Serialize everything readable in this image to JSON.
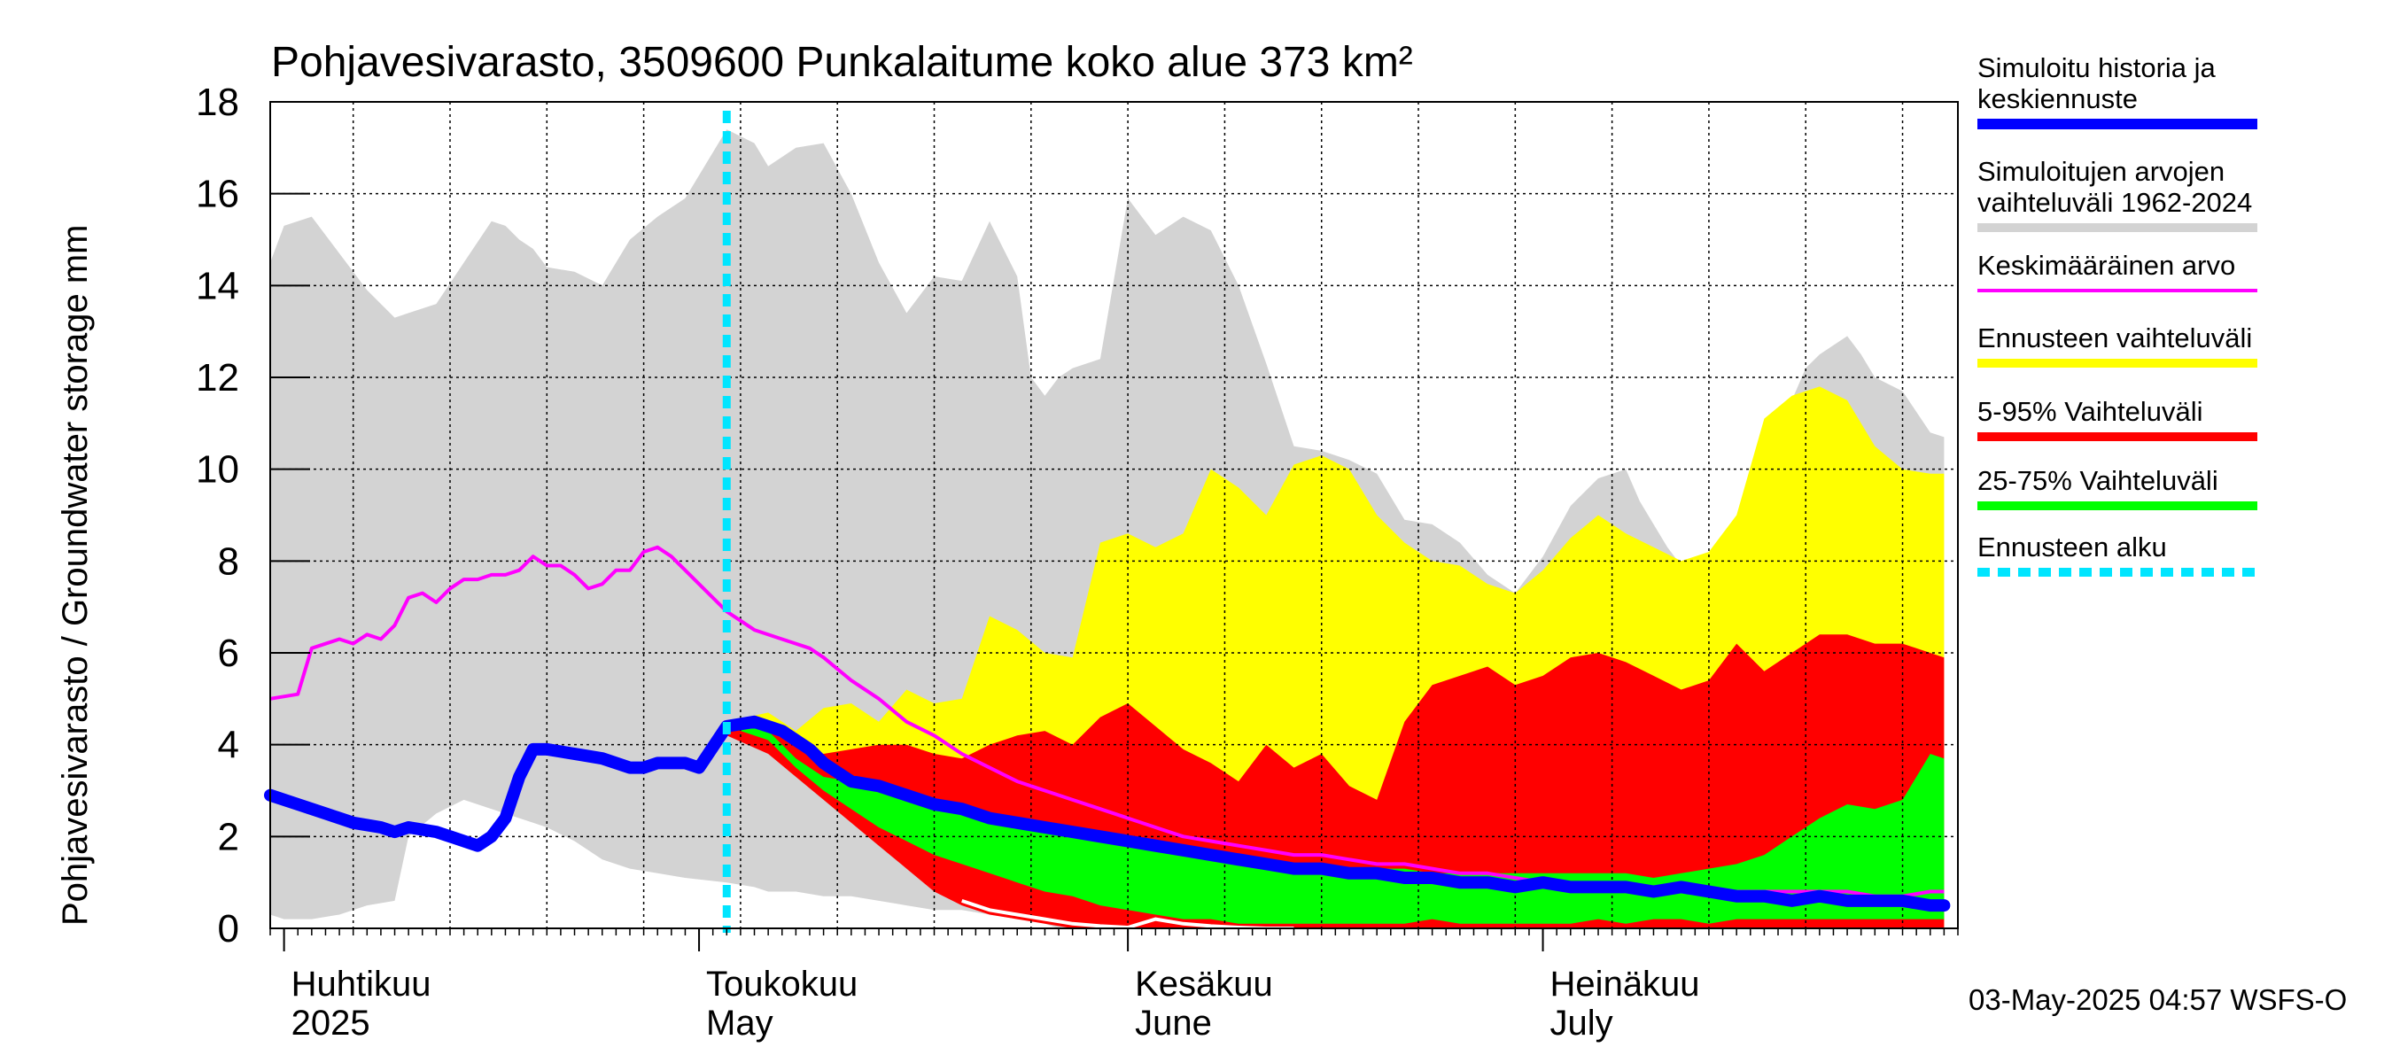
{
  "chart_data": {
    "type": "area",
    "title": "Pohjavesivarasto, 3509600 Punkalaitume koko alue 373 km²",
    "ylabel": "Pohjavesivarasto / Groundwater storage   mm",
    "ylim": [
      0,
      18
    ],
    "y_ticks": [
      "0",
      "2",
      "4",
      "6",
      "8",
      "10",
      "12",
      "14",
      "16",
      "18"
    ],
    "xlim": [
      "2025-03-31",
      "2025-07-31"
    ],
    "x_month_labels": [
      {
        "date": "2025-04-01",
        "fi": "Huhtikuu",
        "en": "2025"
      },
      {
        "date": "2025-05-01",
        "fi": "Toukokuu",
        "en": "May"
      },
      {
        "date": "2025-06-01",
        "fi": "Kesäkuu",
        "en": "June"
      },
      {
        "date": "2025-07-01",
        "fi": "Heinäkuu",
        "en": "July"
      }
    ],
    "grid": true,
    "legend_position": "right",
    "forecast_start": "2025-05-03",
    "timestamp": "03-May-2025 04:57 WSFS-O",
    "legend": [
      {
        "id": "sim",
        "label": [
          "Simuloitu historia ja",
          "keskiennuste"
        ],
        "color": "#0000ff"
      },
      {
        "id": "range",
        "label": [
          "Simuloitujen arvojen",
          "vaihteluväli 1962-2024"
        ],
        "color": "#d3d3d3"
      },
      {
        "id": "mean",
        "label": [
          "Keskimääräinen arvo"
        ],
        "color": "#ff00ff"
      },
      {
        "id": "fc_range",
        "label": [
          "Ennusteen vaihteluväli"
        ],
        "color": "#ffff00"
      },
      {
        "id": "p5_95",
        "label": [
          "5-95% Vaihteluväli"
        ],
        "color": "#ff0000"
      },
      {
        "id": "p25_75",
        "label": [
          "25-75% Vaihteluväli"
        ],
        "color": "#00ff00"
      },
      {
        "id": "fc_start",
        "label": [
          "Ennusteen alku"
        ],
        "color": "#00e5ff"
      }
    ],
    "series": {
      "hist_range": {
        "days": [
          0,
          1,
          3,
          5,
          7,
          9,
          10,
          12,
          14,
          16,
          17,
          18,
          19,
          20,
          22,
          24,
          26,
          28,
          30,
          33,
          35,
          36,
          38,
          40,
          42,
          44,
          46,
          48,
          50,
          52,
          54,
          55,
          56,
          57,
          58,
          60,
          62,
          64,
          66,
          68,
          70,
          72,
          74,
          76,
          78,
          80,
          82,
          84,
          86,
          88,
          90,
          92,
          94,
          96,
          98,
          99,
          100,
          101,
          102,
          104,
          106,
          108,
          110,
          111,
          112,
          113,
          114,
          115,
          116,
          118,
          120,
          121
        ],
        "upper": [
          14.5,
          15.3,
          15.5,
          14.7,
          13.9,
          13.3,
          13.4,
          13.6,
          14.5,
          15.4,
          15.3,
          15.0,
          14.8,
          14.4,
          14.3,
          14.0,
          15.0,
          15.5,
          15.9,
          17.4,
          17.1,
          16.6,
          17.0,
          17.1,
          16.0,
          14.5,
          13.4,
          14.2,
          14.1,
          15.4,
          14.2,
          12.0,
          11.6,
          12.0,
          12.2,
          12.4,
          15.9,
          15.1,
          15.5,
          15.2,
          14.0,
          12.3,
          10.5,
          10.4,
          10.2,
          9.9,
          8.9,
          8.8,
          8.4,
          7.7,
          7.3,
          8.1,
          9.2,
          9.8,
          10.0,
          9.3,
          8.8,
          8.3,
          7.9,
          7.9,
          7.8,
          9.0,
          11.5,
          12.2,
          12.5,
          12.7,
          12.9,
          12.5,
          12.0,
          11.7,
          10.8,
          10.7
        ],
        "lower": [
          0.3,
          0.2,
          0.2,
          0.3,
          0.5,
          0.6,
          2.0,
          2.5,
          2.8,
          2.6,
          2.5,
          2.4,
          2.3,
          2.2,
          1.9,
          1.5,
          1.3,
          1.2,
          1.1,
          1.0,
          0.9,
          0.8,
          0.8,
          0.7,
          0.7,
          0.6,
          0.5,
          0.4,
          0.4,
          0.3,
          0.2,
          0.2,
          0.1,
          0.0,
          0.0,
          0.0,
          0.0,
          0.0,
          0.0,
          0.0,
          0.0,
          0.0,
          0.0,
          0.0,
          0.0,
          0.0,
          0.0,
          0.0,
          0.0,
          0.0,
          0.0,
          0.0,
          0.0,
          0.0,
          0.0,
          0.0,
          0.0,
          0.0,
          0.0,
          0.0,
          0.0,
          0.0,
          0.0,
          0.0,
          0.0,
          0.0,
          0.0,
          0.0,
          0.0,
          0.0,
          0.0,
          0.0
        ]
      },
      "forecast_range": {
        "days": [
          33,
          36,
          38,
          40,
          42,
          44,
          46,
          48,
          50,
          52,
          54,
          56,
          58,
          60,
          62,
          64,
          66,
          68,
          70,
          72,
          74,
          76,
          78,
          80,
          82,
          84,
          86,
          88,
          90,
          92,
          94,
          96,
          98,
          100,
          102,
          104,
          106,
          108,
          110,
          112,
          114,
          116,
          118,
          120,
          121
        ],
        "upper": [
          4.5,
          4.7,
          4.3,
          4.8,
          4.9,
          4.5,
          5.2,
          4.9,
          5.0,
          6.8,
          6.5,
          6.0,
          5.9,
          8.4,
          8.6,
          8.3,
          8.6,
          10.0,
          9.6,
          9.0,
          10.1,
          10.3,
          10.0,
          9.0,
          8.4,
          8.0,
          7.9,
          7.5,
          7.3,
          7.8,
          8.5,
          9.0,
          8.6,
          8.3,
          8.0,
          8.2,
          9.0,
          11.1,
          11.6,
          11.8,
          11.5,
          10.5,
          10.0,
          9.9,
          9.9
        ],
        "lower": [
          4.3,
          4.0,
          3.5,
          3.0,
          2.5,
          2.0,
          1.5,
          1.0,
          0.7,
          0.5,
          0.3,
          0.2,
          0.1,
          0.0,
          0.0,
          0.0,
          0.0,
          0.0,
          0.0,
          0.0,
          0.0,
          0.0,
          0.0,
          0.0,
          0.0,
          0.0,
          0.0,
          0.0,
          0.0,
          0.0,
          0.0,
          0.0,
          0.0,
          0.0,
          0.0,
          0.0,
          0.0,
          0.0,
          0.0,
          0.0,
          0.0,
          0.0,
          0.0,
          0.0,
          0.0
        ]
      },
      "p5_95": {
        "days": [
          33,
          36,
          38,
          40,
          42,
          44,
          46,
          48,
          50,
          52,
          54,
          56,
          58,
          60,
          62,
          64,
          66,
          68,
          70,
          72,
          74,
          76,
          78,
          80,
          82,
          84,
          86,
          88,
          90,
          92,
          94,
          96,
          98,
          100,
          102,
          104,
          106,
          108,
          110,
          112,
          114,
          116,
          118,
          120,
          121
        ],
        "upper": [
          4.4,
          4.3,
          4.0,
          3.8,
          3.9,
          4.0,
          4.0,
          3.8,
          3.7,
          4.0,
          4.2,
          4.3,
          4.0,
          4.6,
          4.9,
          4.4,
          3.9,
          3.6,
          3.2,
          4.0,
          3.5,
          3.8,
          3.1,
          2.8,
          4.5,
          5.3,
          5.5,
          5.7,
          5.3,
          5.5,
          5.9,
          6.0,
          5.8,
          5.5,
          5.2,
          5.4,
          6.2,
          5.6,
          6.0,
          6.4,
          6.4,
          6.2,
          6.2,
          6.0,
          5.9
        ],
        "lower": [
          4.2,
          3.8,
          3.3,
          2.8,
          2.3,
          1.8,
          1.3,
          0.8,
          0.5,
          0.3,
          0.2,
          0.1,
          0.0,
          0.0,
          0.0,
          0.0,
          0.0,
          0.0,
          0.0,
          0.0,
          0.0,
          0.0,
          0.0,
          0.0,
          0.0,
          0.0,
          0.0,
          0.0,
          0.0,
          0.0,
          0.0,
          0.0,
          0.0,
          0.0,
          0.0,
          0.0,
          0.0,
          0.0,
          0.0,
          0.0,
          0.0,
          0.0,
          0.0,
          0.0,
          0.0
        ]
      },
      "p25_75": {
        "days": [
          33,
          36,
          38,
          40,
          42,
          44,
          46,
          48,
          50,
          52,
          54,
          56,
          58,
          60,
          62,
          64,
          66,
          68,
          70,
          72,
          74,
          76,
          78,
          80,
          82,
          84,
          86,
          88,
          90,
          92,
          94,
          96,
          98,
          100,
          102,
          104,
          106,
          108,
          110,
          112,
          114,
          116,
          118,
          120,
          121
        ],
        "upper": [
          4.5,
          4.3,
          3.7,
          3.3,
          3.2,
          3.0,
          2.9,
          2.7,
          2.6,
          2.4,
          2.3,
          2.2,
          2.1,
          2.0,
          1.9,
          1.8,
          1.7,
          1.6,
          1.6,
          1.5,
          1.4,
          1.4,
          1.3,
          1.3,
          1.3,
          1.2,
          1.2,
          1.2,
          1.2,
          1.2,
          1.2,
          1.2,
          1.2,
          1.1,
          1.2,
          1.3,
          1.4,
          1.6,
          2.0,
          2.4,
          2.7,
          2.6,
          2.8,
          3.8,
          3.7
        ],
        "lower": [
          4.4,
          4.1,
          3.5,
          3.0,
          2.6,
          2.2,
          1.9,
          1.6,
          1.4,
          1.2,
          1.0,
          0.8,
          0.7,
          0.5,
          0.4,
          0.3,
          0.2,
          0.2,
          0.1,
          0.1,
          0.1,
          0.1,
          0.1,
          0.1,
          0.1,
          0.2,
          0.1,
          0.1,
          0.1,
          0.1,
          0.1,
          0.2,
          0.1,
          0.2,
          0.2,
          0.1,
          0.2,
          0.2,
          0.2,
          0.2,
          0.2,
          0.2,
          0.2,
          0.2,
          0.2
        ]
      },
      "mean": {
        "days": [
          0,
          2,
          3,
          5,
          6,
          7,
          8,
          9,
          10,
          11,
          12,
          13,
          14,
          15,
          16,
          17,
          18,
          19,
          20,
          21,
          22,
          23,
          24,
          25,
          26,
          27,
          28,
          29,
          30,
          31,
          32,
          33,
          35,
          37,
          39,
          40,
          42,
          44,
          46,
          48,
          50,
          52,
          54,
          56,
          58,
          60,
          62,
          64,
          66,
          68,
          70,
          72,
          74,
          76,
          78,
          80,
          82,
          84,
          86,
          88,
          90,
          92,
          94,
          96,
          98,
          100,
          102,
          104,
          106,
          108,
          110,
          112,
          114,
          116,
          118,
          120,
          121
        ],
        "values": [
          5.0,
          5.1,
          6.1,
          6.3,
          6.2,
          6.4,
          6.3,
          6.6,
          7.2,
          7.3,
          7.1,
          7.4,
          7.6,
          7.6,
          7.7,
          7.7,
          7.8,
          8.1,
          7.9,
          7.9,
          7.7,
          7.4,
          7.5,
          7.8,
          7.8,
          8.2,
          8.3,
          8.1,
          7.8,
          7.5,
          7.2,
          6.9,
          6.5,
          6.3,
          6.1,
          5.9,
          5.4,
          5.0,
          4.5,
          4.2,
          3.8,
          3.5,
          3.2,
          3.0,
          2.8,
          2.6,
          2.4,
          2.2,
          2.0,
          1.9,
          1.8,
          1.7,
          1.6,
          1.6,
          1.5,
          1.4,
          1.4,
          1.3,
          1.2,
          1.2,
          1.1,
          1.0,
          0.9,
          0.9,
          0.9,
          0.8,
          0.9,
          0.8,
          0.8,
          0.8,
          0.8,
          0.8,
          0.8,
          0.7,
          0.7,
          0.8,
          0.8
        ]
      },
      "forecast_min": {
        "days": [
          50,
          52,
          54,
          56,
          58,
          60,
          62,
          64,
          66,
          68,
          70,
          72,
          74
        ],
        "values": [
          0.6,
          0.4,
          0.3,
          0.2,
          0.1,
          0.05,
          0.02,
          0.2,
          0.1,
          0.05,
          0.02,
          0.0,
          0.0
        ]
      },
      "simulated": {
        "days": [
          0,
          2,
          4,
          6,
          8,
          9,
          10,
          12,
          14,
          15,
          16,
          17,
          18,
          19,
          20,
          22,
          24,
          26,
          27,
          28,
          29,
          30,
          31,
          33,
          35,
          37,
          39,
          40,
          42,
          44,
          46,
          48,
          50,
          52,
          54,
          56,
          58,
          60,
          62,
          64,
          66,
          68,
          70,
          72,
          74,
          76,
          78,
          80,
          82,
          84,
          86,
          88,
          90,
          92,
          94,
          96,
          98,
          100,
          102,
          104,
          106,
          108,
          110,
          112,
          114,
          116,
          118,
          120,
          121
        ],
        "values": [
          2.9,
          2.7,
          2.5,
          2.3,
          2.2,
          2.1,
          2.2,
          2.1,
          1.9,
          1.8,
          2.0,
          2.4,
          3.3,
          3.9,
          3.9,
          3.8,
          3.7,
          3.5,
          3.5,
          3.6,
          3.6,
          3.6,
          3.5,
          4.4,
          4.5,
          4.3,
          3.9,
          3.6,
          3.2,
          3.1,
          2.9,
          2.7,
          2.6,
          2.4,
          2.3,
          2.2,
          2.1,
          2.0,
          1.9,
          1.8,
          1.7,
          1.6,
          1.5,
          1.4,
          1.3,
          1.3,
          1.2,
          1.2,
          1.1,
          1.1,
          1.0,
          1.0,
          0.9,
          1.0,
          0.9,
          0.9,
          0.9,
          0.8,
          0.9,
          0.8,
          0.7,
          0.7,
          0.6,
          0.7,
          0.6,
          0.6,
          0.6,
          0.5,
          0.5
        ]
      }
    }
  }
}
